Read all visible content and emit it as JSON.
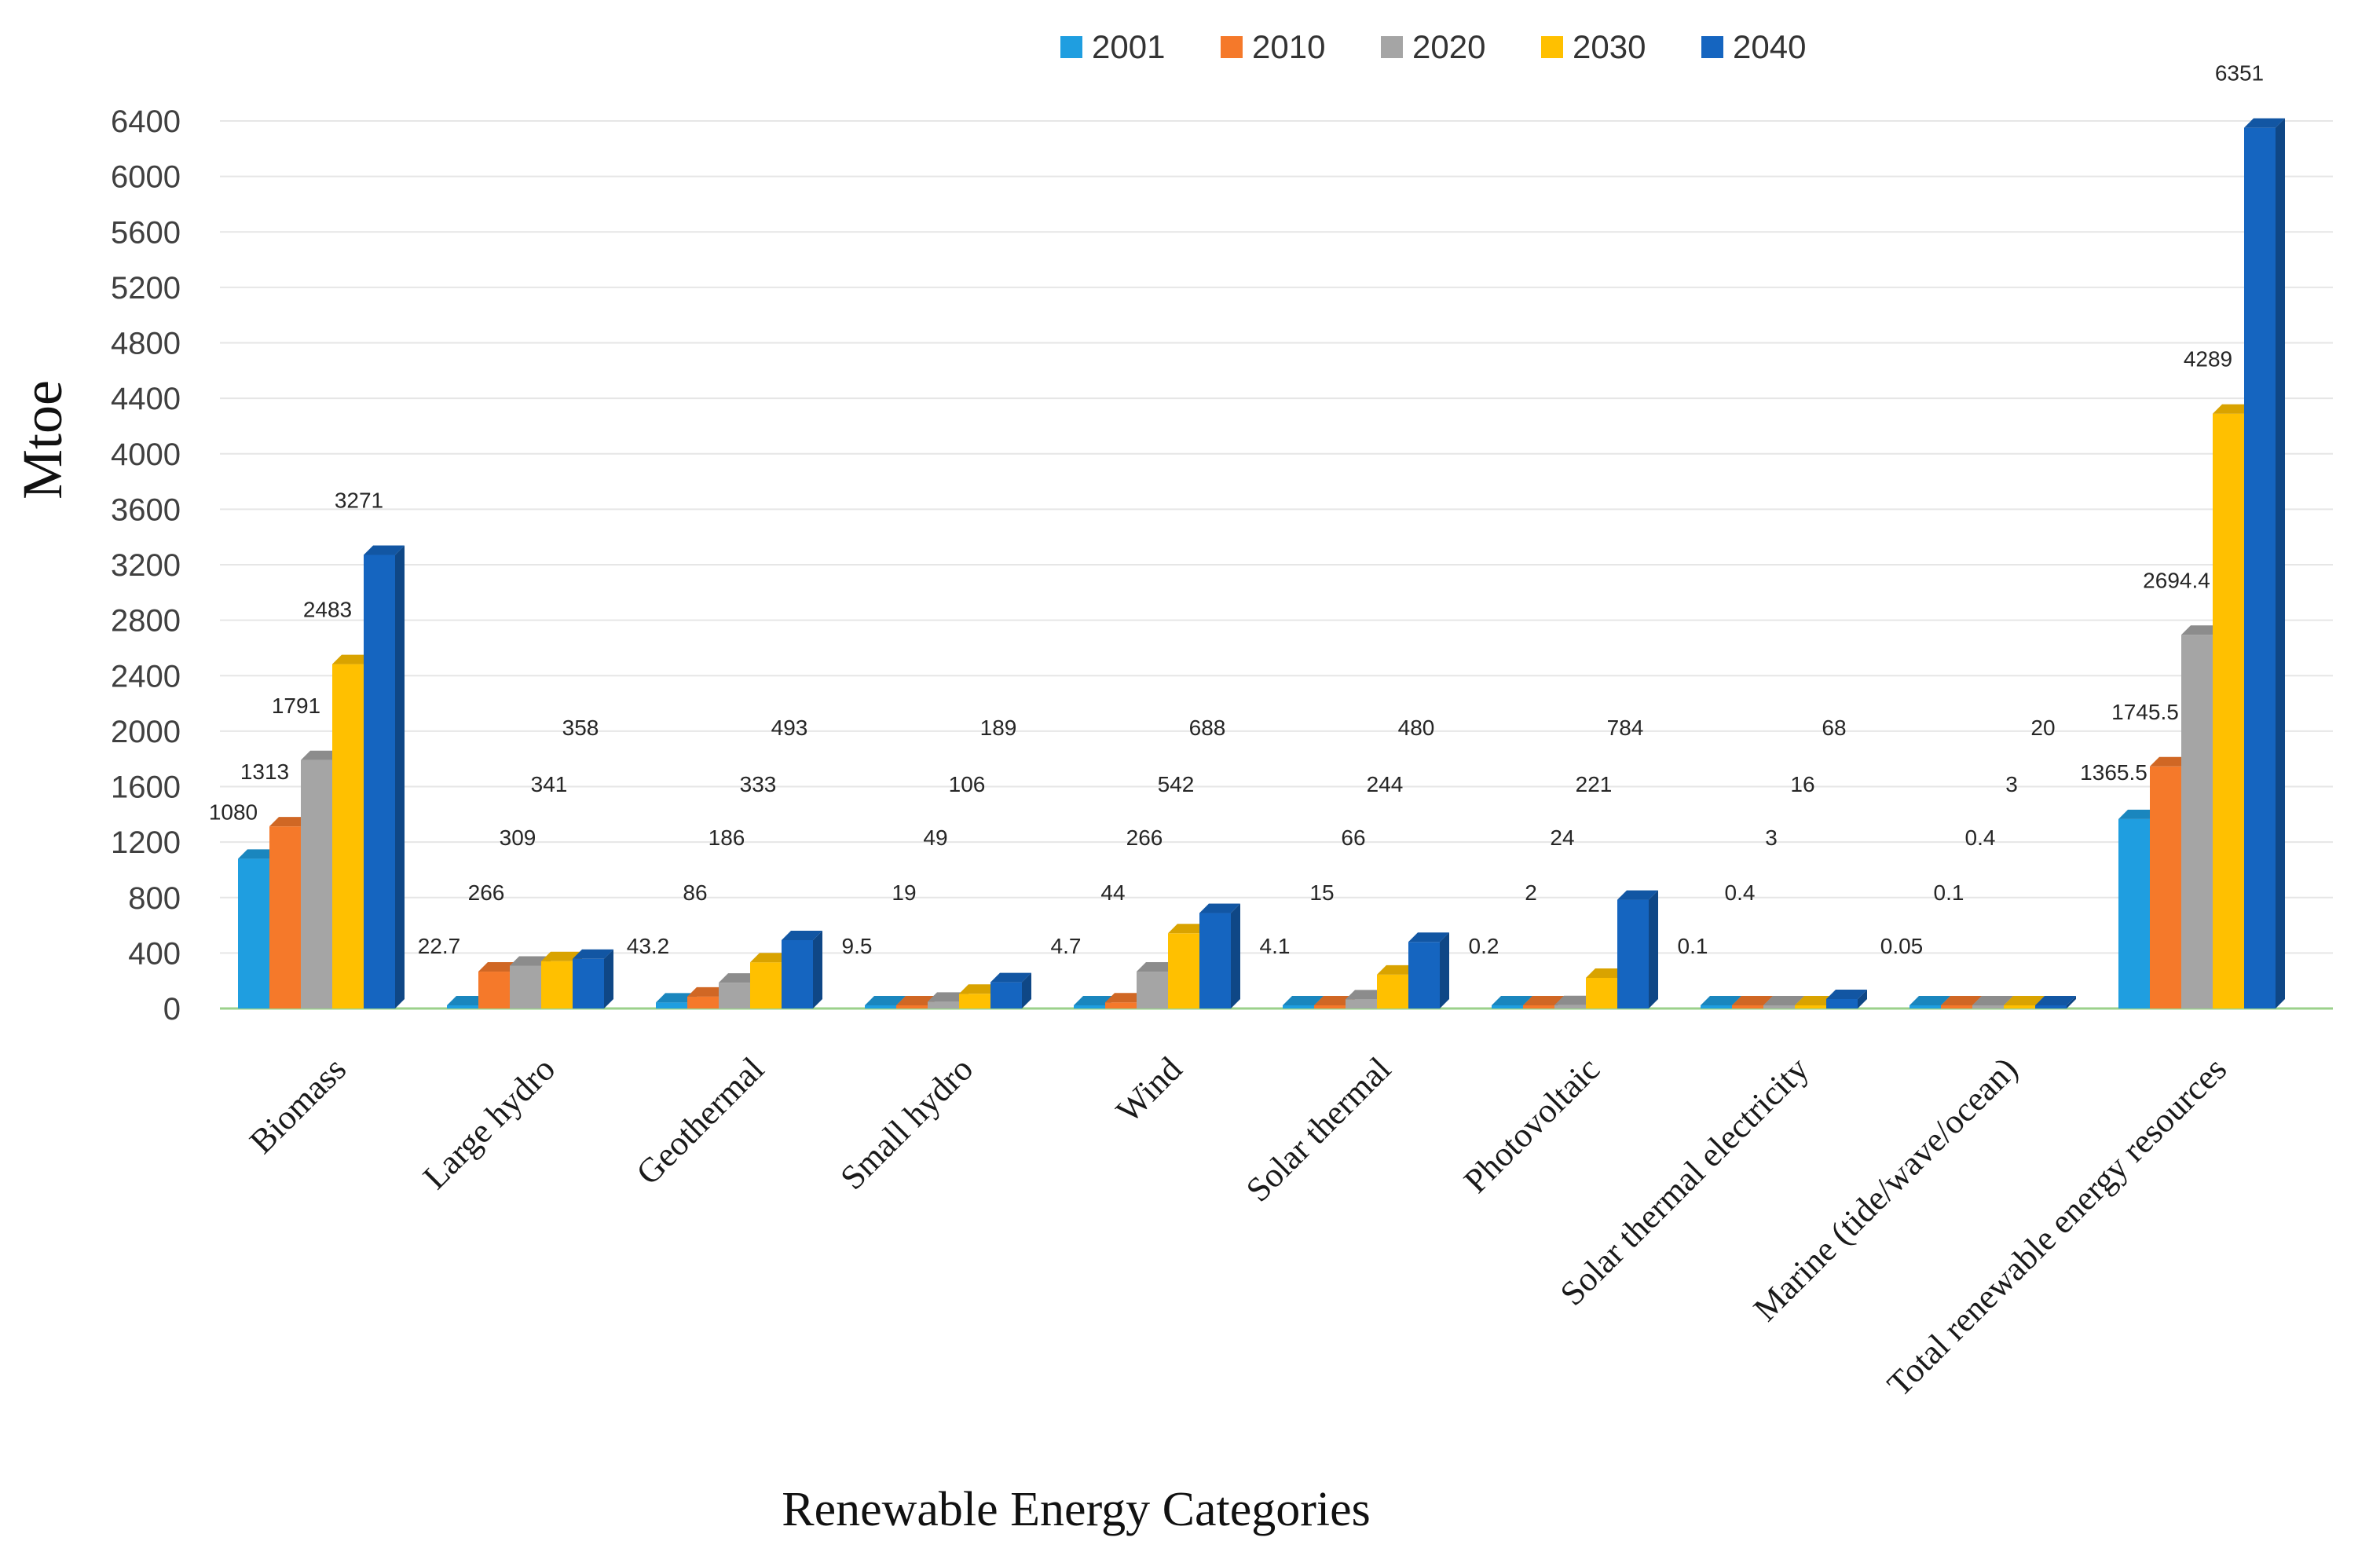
{
  "chart_data": {
    "type": "bar",
    "title": "",
    "xlabel": "Renewable Energy Categories",
    "ylabel": "Mtoe",
    "ylim": [
      0,
      6400
    ],
    "yticks": [
      0,
      400,
      800,
      1200,
      1600,
      2000,
      2400,
      2800,
      3200,
      3600,
      4000,
      4400,
      4800,
      5200,
      5600,
      6000,
      6400
    ],
    "legend_position": "top",
    "grid": true,
    "categories": [
      "Biomass",
      "Large hydro",
      "Geothermal",
      "Small hydro",
      "Wind",
      "Solar  thermal",
      "Photovoltaic",
      "Solar thermal electricity",
      "Marine (tide/wave/ocean)",
      "Total renewable energy resources"
    ],
    "series": [
      {
        "name": "2001",
        "color": "#1f9ee0",
        "values": [
          1080,
          22.7,
          43.2,
          9.5,
          4.7,
          4.1,
          0.2,
          0.1,
          0.05,
          1365.5
        ],
        "labels": [
          "1080",
          "22.7",
          "43.2",
          "9.5",
          "4.7",
          "4.1",
          "0.2",
          "0.1",
          "0.05",
          "1365.5"
        ]
      },
      {
        "name": "2010",
        "color": "#f5792a",
        "values": [
          1313,
          266,
          86,
          19,
          44,
          15,
          2,
          0.4,
          0.1,
          1745.5
        ],
        "labels": [
          "1313",
          "266",
          "86",
          "19",
          "44",
          "15",
          "2",
          "0.4",
          "0.1",
          "1745.5"
        ]
      },
      {
        "name": "2020",
        "color": "#a5a5a5",
        "values": [
          1791,
          309,
          186,
          49,
          266,
          66,
          24,
          3,
          0.4,
          2694.4
        ],
        "labels": [
          "1791",
          "309",
          "186",
          "49",
          "266",
          "66",
          "24",
          "3",
          "0.4",
          "2694.4"
        ]
      },
      {
        "name": "2030",
        "color": "#ffc000",
        "values": [
          2483,
          341,
          333,
          106,
          542,
          244,
          221,
          16,
          3,
          4289
        ],
        "labels": [
          "2483",
          "341",
          "333",
          "106",
          "542",
          "244",
          "221",
          "16",
          "3",
          "4289"
        ]
      },
      {
        "name": "2040",
        "color": "#1565c0",
        "values": [
          3271,
          358,
          493,
          189,
          688,
          480,
          784,
          68,
          20,
          6351
        ],
        "labels": [
          "3271",
          "358",
          "493",
          "189",
          "688",
          "480",
          "784",
          "68",
          "20",
          "6351"
        ]
      }
    ]
  }
}
